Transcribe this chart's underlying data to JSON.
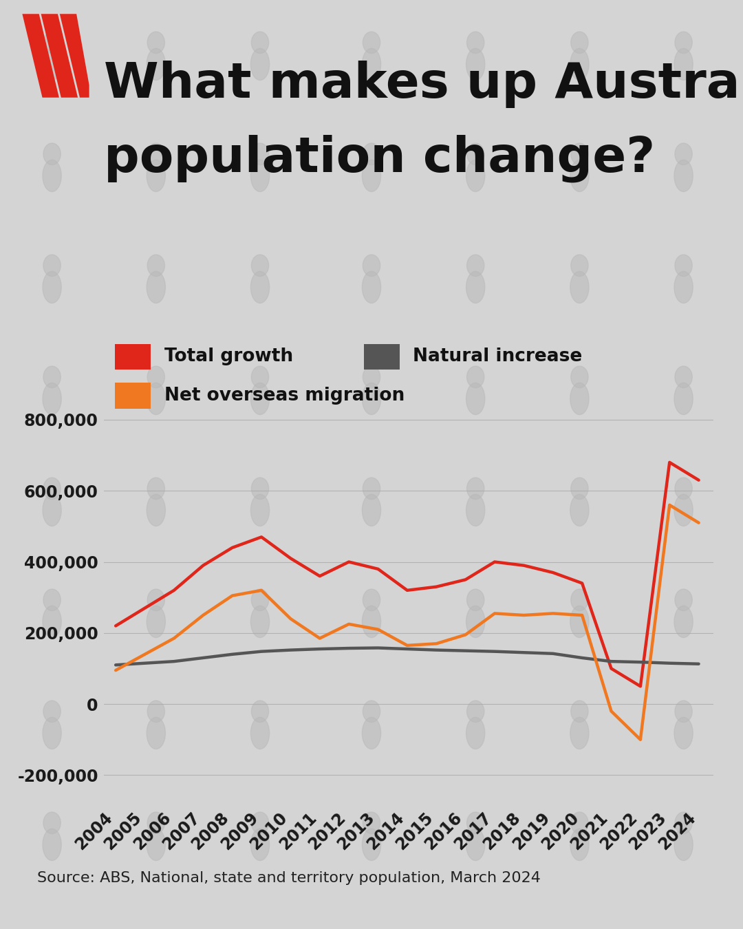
{
  "title_line1": "What makes up Australia's",
  "title_line2": "population change?",
  "source": "Source: ABS, National, state and territory population, March 2024",
  "background_color": "#d4d4d4",
  "years": [
    2004,
    2005,
    2006,
    2007,
    2008,
    2009,
    2010,
    2011,
    2012,
    2013,
    2014,
    2015,
    2016,
    2017,
    2018,
    2019,
    2020,
    2021,
    2022,
    2023,
    2024
  ],
  "total_growth": [
    220000,
    270000,
    320000,
    390000,
    440000,
    470000,
    410000,
    360000,
    400000,
    380000,
    320000,
    330000,
    350000,
    400000,
    390000,
    370000,
    340000,
    100000,
    50000,
    680000,
    630000
  ],
  "natural_increase": [
    110000,
    115000,
    120000,
    130000,
    140000,
    148000,
    152000,
    155000,
    157000,
    158000,
    155000,
    152000,
    150000,
    148000,
    145000,
    142000,
    130000,
    120000,
    118000,
    115000,
    113000
  ],
  "net_migration": [
    95000,
    140000,
    185000,
    250000,
    305000,
    320000,
    240000,
    185000,
    225000,
    210000,
    165000,
    170000,
    195000,
    255000,
    250000,
    255000,
    250000,
    -20000,
    -100000,
    560000,
    510000
  ],
  "total_growth_color": "#e0251a",
  "natural_increase_color": "#555555",
  "net_migration_color": "#f07820",
  "ylim": [
    -280000,
    870000
  ],
  "yticks": [
    -200000,
    0,
    200000,
    400000,
    600000,
    800000
  ],
  "ytick_labels": [
    "-200,000",
    "0",
    "200,000",
    "400,000",
    "600,000",
    "800,000"
  ],
  "line_width": 3.2,
  "legend_fontsize": 19,
  "title_fontsize": 52,
  "tick_fontsize": 17,
  "source_fontsize": 16,
  "person_color": "#b8b8b8",
  "person_alpha": 0.5
}
